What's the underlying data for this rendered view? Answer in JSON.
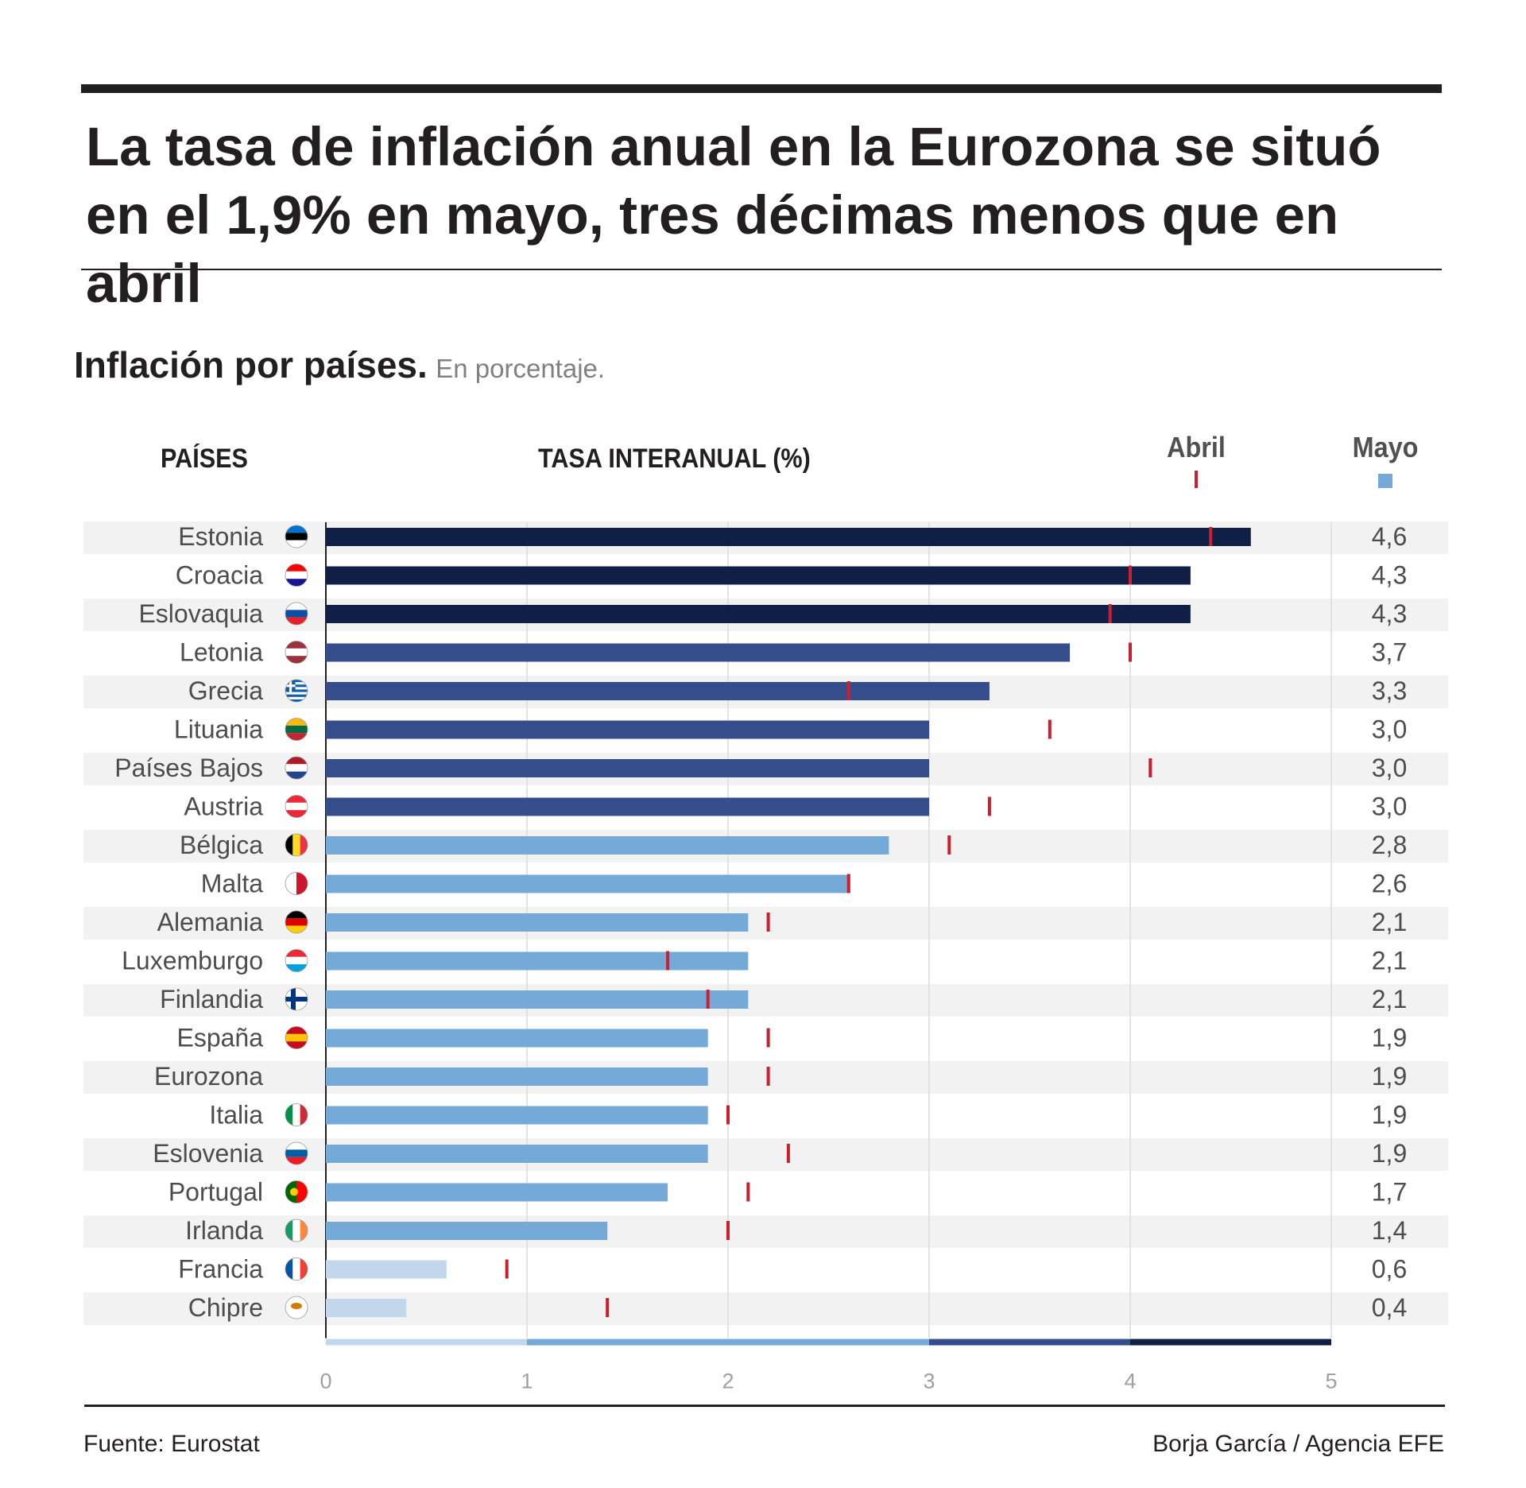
{
  "headline": "La tasa de inflación anual en la Eurozona se situó en el 1,9% en mayo, tres décimas menos que en abril",
  "subtitle": {
    "main": "Inflación por países.",
    "unit": "En porcentaje."
  },
  "headers": {
    "countries": "PAÍSES",
    "rate": "TASA INTERANUAL (%)"
  },
  "legend": {
    "april": "Abril",
    "may": "Mayo"
  },
  "footer": {
    "source": "Fuente: Eurostat",
    "credit": "Borja García / Agencia EFE"
  },
  "colors": {
    "band_0_1": "#c2d7eb",
    "band_1_3": "#74a9d8",
    "band_3_4": "#354d8b",
    "band_4_5": "#0f1f45",
    "april_marker": "#c8202f",
    "row_stripe": "#f2f2f2",
    "gridline": "#dcdcdc"
  },
  "chart_data": {
    "type": "bar",
    "orientation": "horizontal",
    "title": "Inflación por países.",
    "xlabel": "TASA INTERANUAL (%)",
    "xlim": [
      0,
      5
    ],
    "xticks": [
      "0",
      "1",
      "2",
      "3",
      "4",
      "5"
    ],
    "grid": true,
    "legend_position": "top-right",
    "categories": [
      "Estonia",
      "Croacia",
      "Eslovaquia",
      "Letonia",
      "Grecia",
      "Lituania",
      "Países Bajos",
      "Austria",
      "Bélgica",
      "Malta",
      "Alemania",
      "Luxemburgo",
      "Finlandia",
      "España",
      "Eurozona",
      "Italia",
      "Eslovenia",
      "Portugal",
      "Irlanda",
      "Francia",
      "Chipre"
    ],
    "value_labels": [
      "4,6",
      "4,3",
      "4,3",
      "3,7",
      "3,3",
      "3,0",
      "3,0",
      "3,0",
      "2,8",
      "2,6",
      "2,1",
      "2,1",
      "2,1",
      "1,9",
      "1,9",
      "1,9",
      "1,9",
      "1,7",
      "1,4",
      "0,6",
      "0,4"
    ],
    "series": [
      {
        "name": "Mayo",
        "values": [
          4.6,
          4.3,
          4.3,
          3.7,
          3.3,
          3.0,
          3.0,
          3.0,
          2.8,
          2.6,
          2.1,
          2.1,
          2.1,
          1.9,
          1.9,
          1.9,
          1.9,
          1.7,
          1.4,
          0.6,
          0.4
        ]
      },
      {
        "name": "Abril",
        "values": [
          4.4,
          4.0,
          3.9,
          4.0,
          2.6,
          3.6,
          4.1,
          3.3,
          3.1,
          2.6,
          2.2,
          1.7,
          1.9,
          2.2,
          2.2,
          2.0,
          2.3,
          2.1,
          2.0,
          0.9,
          1.4
        ]
      }
    ],
    "flags": [
      "estonia-flag",
      "croatia-flag",
      "slovakia-flag",
      "latvia-flag",
      "greece-flag",
      "lithuania-flag",
      "netherlands-flag",
      "austria-flag",
      "belgium-flag",
      "malta-flag",
      "germany-flag",
      "luxembourg-flag",
      "finland-flag",
      "spain-flag",
      "",
      "italy-flag",
      "slovenia-flag",
      "portugal-flag",
      "ireland-flag",
      "france-flag",
      "cyprus-flag"
    ],
    "color_scale": [
      {
        "from": 0,
        "to": 1
      },
      {
        "from": 1,
        "to": 3
      },
      {
        "from": 3,
        "to": 4
      },
      {
        "from": 4,
        "to": 5
      }
    ]
  }
}
